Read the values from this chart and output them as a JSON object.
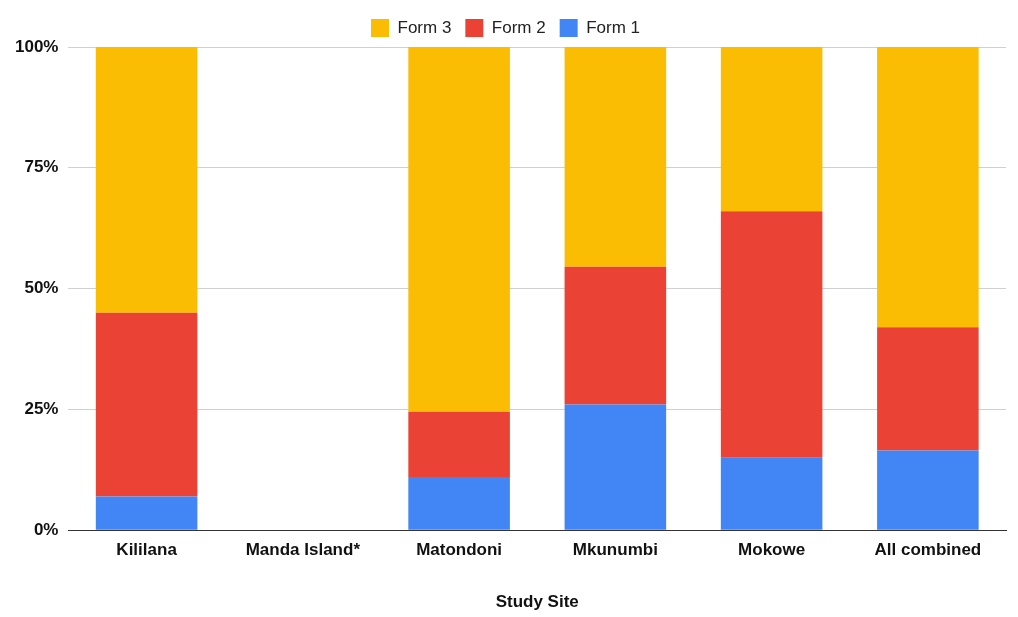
{
  "chart_data": {
    "type": "bar",
    "stacked": true,
    "xlabel": "Study Site",
    "categories": [
      "Kililana",
      "Manda Island*",
      "Matondoni",
      "Mkunumbi",
      "Mokowe",
      "All combined"
    ],
    "series": [
      {
        "name": "Form 1",
        "color": "#4285f4",
        "values": [
          7,
          null,
          11,
          26,
          15,
          16.5
        ]
      },
      {
        "name": "Form 2",
        "color": "#ea4335",
        "values": [
          38,
          null,
          13.5,
          28.5,
          51,
          25.5
        ]
      },
      {
        "name": "Form 3",
        "color": "#fbbc04",
        "values": [
          55,
          null,
          75.5,
          45.5,
          34,
          58
        ]
      }
    ],
    "ylim": [
      0,
      100
    ],
    "yticks": [
      {
        "value": 0,
        "label": "0%"
      },
      {
        "value": 25,
        "label": "25%"
      },
      {
        "value": 50,
        "label": "50%"
      },
      {
        "value": 75,
        "label": "75%"
      },
      {
        "value": 100,
        "label": "100%"
      }
    ],
    "grid": "y",
    "legend": "top"
  }
}
